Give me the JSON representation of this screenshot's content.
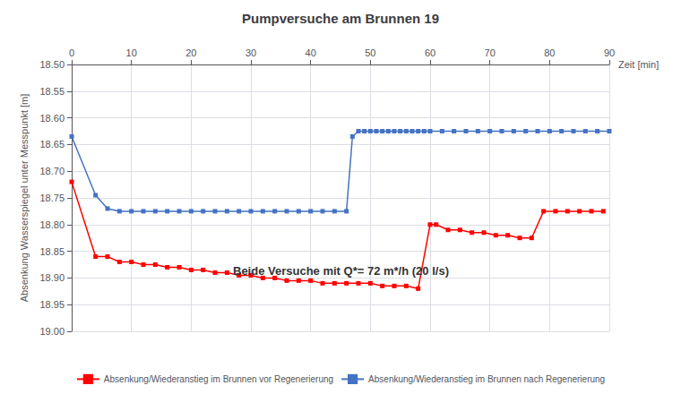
{
  "chart_data": {
    "type": "line",
    "title": "Pumpversuche am Brunnen 19",
    "x_label": "Zeit [min]",
    "y_label": "Absenkung Wasserspiegel unter Messpunkt [m]",
    "annotation": "Beide Versuche mit Q*= 72 m*/h (20 l/s)",
    "xlim": [
      0,
      90
    ],
    "ylim": [
      19.0,
      18.5
    ],
    "xticks": [
      0,
      10,
      20,
      30,
      40,
      50,
      60,
      70,
      80,
      90
    ],
    "yticks": [
      {
        "value": 18.5,
        "label": "18.50"
      },
      18.55,
      {
        "value": 18.6,
        "label": "18.60"
      },
      18.65,
      {
        "value": 18.7,
        "label": "18.70"
      },
      18.75,
      {
        "value": 18.8,
        "label": "18.80"
      },
      18.85,
      {
        "value": 18.9,
        "label": "18.90"
      },
      18.95,
      {
        "value": 19.0,
        "label": "19.00"
      }
    ],
    "grid": true,
    "legend": "bottom",
    "series": [
      {
        "name": "Absenkung/Wiederanstieg im Brunnen vor Regenerierung",
        "color": "#FF0000",
        "marker": "square",
        "x": [
          0,
          4,
          6,
          8,
          10,
          12,
          14,
          16,
          18,
          20,
          22,
          24,
          26,
          28,
          30,
          32,
          34,
          36,
          38,
          40,
          42,
          44,
          46,
          48,
          50,
          52,
          54,
          56,
          58,
          60,
          61,
          63,
          65,
          67,
          69,
          71,
          73,
          75,
          77,
          79,
          81,
          83,
          85,
          87,
          89
        ],
        "values": [
          18.72,
          18.86,
          18.86,
          18.87,
          18.87,
          18.875,
          18.875,
          18.88,
          18.88,
          18.885,
          18.885,
          18.89,
          18.89,
          18.895,
          18.895,
          18.9,
          18.9,
          18.905,
          18.905,
          18.905,
          18.91,
          18.91,
          18.91,
          18.91,
          18.91,
          18.915,
          18.915,
          18.915,
          18.92,
          18.8,
          18.8,
          18.81,
          18.81,
          18.815,
          18.815,
          18.82,
          18.82,
          18.825,
          18.825,
          18.775,
          18.775,
          18.775,
          18.775,
          18.775,
          18.775
        ]
      },
      {
        "name": "Absenkung/Wiederanstieg im Brunnen nach Regenerierung",
        "color": "#4472C4",
        "marker": "square",
        "x": [
          0,
          4,
          6,
          8,
          10,
          12,
          14,
          16,
          18,
          20,
          22,
          24,
          26,
          28,
          30,
          32,
          34,
          36,
          38,
          40,
          42,
          44,
          46,
          47,
          48,
          49,
          50,
          51,
          52,
          53,
          54,
          55,
          56,
          57,
          58,
          59,
          60,
          62,
          64,
          66,
          68,
          70,
          72,
          74,
          76,
          78,
          80,
          82,
          84,
          86,
          88,
          90
        ],
        "values": [
          18.635,
          18.745,
          18.77,
          18.775,
          18.775,
          18.775,
          18.775,
          18.775,
          18.775,
          18.775,
          18.775,
          18.775,
          18.775,
          18.775,
          18.775,
          18.775,
          18.775,
          18.775,
          18.775,
          18.775,
          18.775,
          18.775,
          18.775,
          18.635,
          18.625,
          18.625,
          18.625,
          18.625,
          18.625,
          18.625,
          18.625,
          18.625,
          18.625,
          18.625,
          18.625,
          18.625,
          18.625,
          18.625,
          18.625,
          18.625,
          18.625,
          18.625,
          18.625,
          18.625,
          18.625,
          18.625,
          18.625,
          18.625,
          18.625,
          18.625,
          18.625,
          18.625
        ]
      }
    ]
  }
}
